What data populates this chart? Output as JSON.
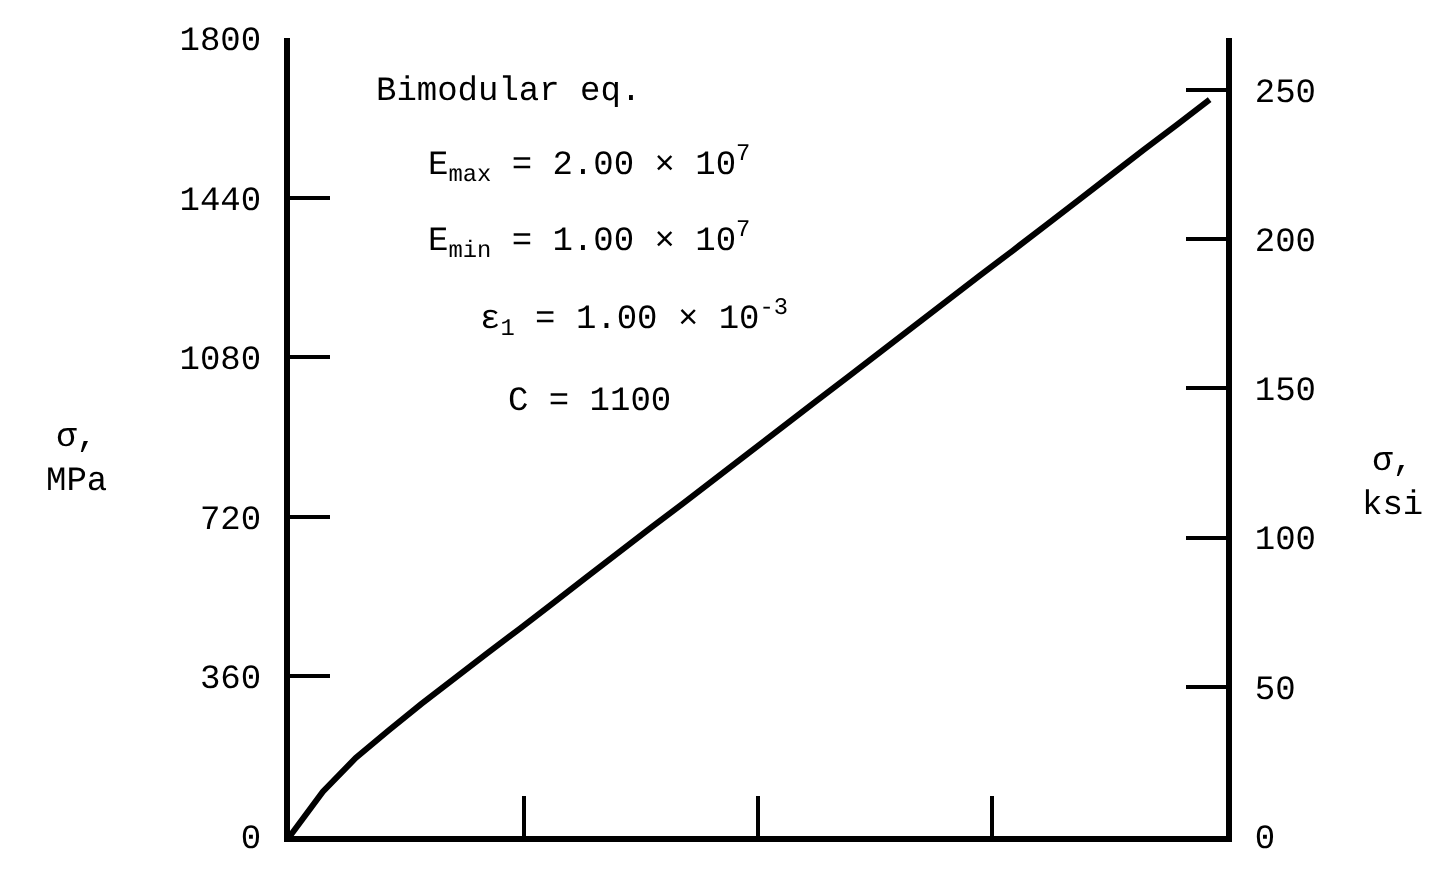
{
  "chart_data": {
    "type": "line",
    "categories": [
      null,
      null,
      null,
      null,
      null,
      null,
      null,
      null,
      null,
      null,
      null,
      null,
      null,
      null,
      null,
      null,
      null,
      null,
      null,
      null,
      null,
      null,
      null,
      null,
      null,
      null,
      null,
      null,
      null
    ],
    "series": [
      {
        "color": "#000000",
        "values": [
          0,
          100,
          176,
          238,
          298,
          355,
          412,
          468,
          525,
          582,
          639,
          696,
          752,
          809,
          866,
          923,
          980,
          1036,
          1093,
          1150,
          1207,
          1264,
          1320,
          1377,
          1434,
          1491,
          1548,
          1604,
          1661
        ]
      }
    ],
    "ylim": [
      0,
      1800
    ],
    "yticks": [
      0,
      360,
      720,
      1080,
      1440,
      1800
    ],
    "y2lim": [
      0,
      267.4
    ],
    "y2ticks": [
      0,
      50,
      100,
      150,
      200,
      250
    ],
    "ylabel": "σ,\nMPa",
    "y2label": "σ,\nksi",
    "tick_labels": "y",
    "marker": "none",
    "line_style": "solid",
    "annotations": [
      "Bimodular eq.",
      "E$_{max}$ = 2.00 × 10$^{7}$",
      "E$_{min}$ = 1.00 × 10$^{7}$",
      "ε$_{1}$ = 1.00 × 10$^{-3}$",
      "C = 1100"
    ]
  }
}
